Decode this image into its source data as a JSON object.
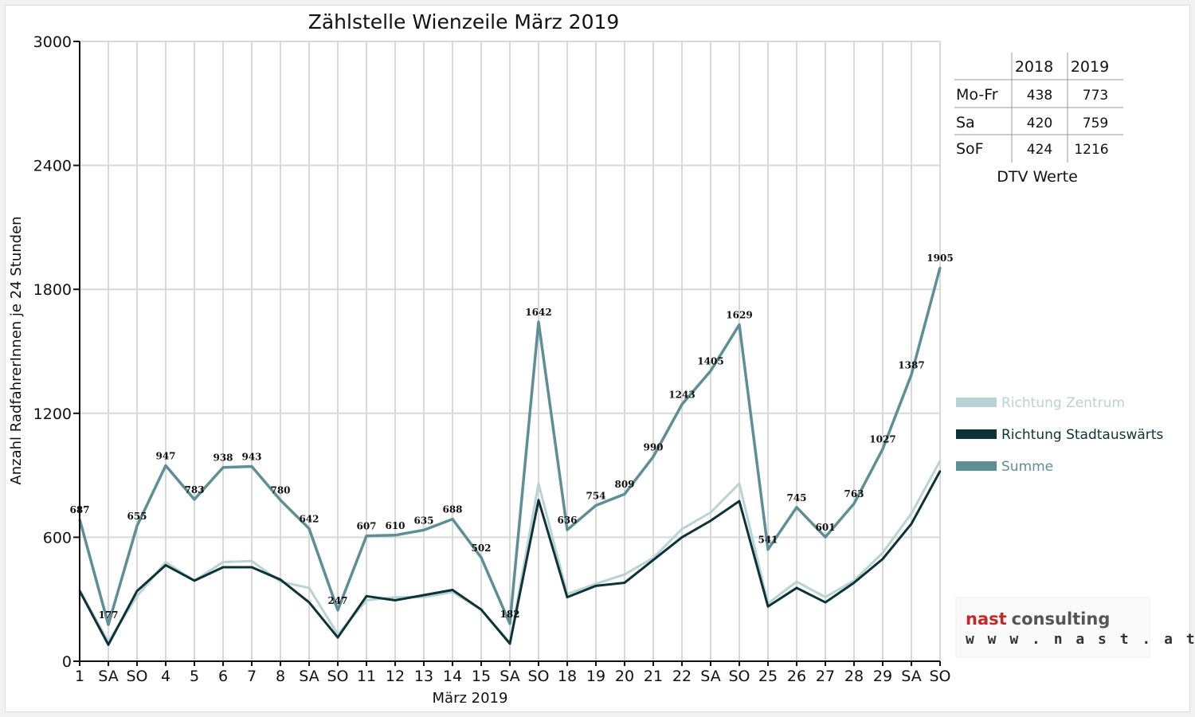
{
  "chart_data": {
    "type": "line",
    "title": "Zählstelle Wienzeile März 2019",
    "xlabel": "März 2019",
    "ylabel": "Anzahl RadfahrerInnen je 24 Stunden",
    "ylim": [
      0,
      3000
    ],
    "yticks": [
      0,
      600,
      1200,
      1800,
      2400,
      3000
    ],
    "grid": true,
    "legend_position": "right",
    "categories": [
      "1",
      "SA",
      "SO",
      "4",
      "5",
      "6",
      "7",
      "8",
      "SA",
      "SO",
      "11",
      "12",
      "13",
      "14",
      "15",
      "SA",
      "SO",
      "18",
      "19",
      "20",
      "21",
      "22",
      "SA",
      "SO",
      "25",
      "26",
      "27",
      "28",
      "29",
      "SA",
      "SO"
    ],
    "weekend_highlight": [
      "SO"
    ],
    "series": [
      {
        "name": "Richtung Zentrum",
        "color": "#b9d3d4",
        "values": [
          345,
          95,
          315,
          480,
          390,
          480,
          485,
          385,
          355,
          130,
          295,
          310,
          310,
          335,
          250,
          90,
          860,
          325,
          375,
          420,
          500,
          640,
          720,
          860,
          280,
          385,
          310,
          390,
          525,
          715,
          970
        ]
      },
      {
        "name": "Richtung Stadtauswärts",
        "color": "#0d3238",
        "values": [
          340,
          80,
          340,
          465,
          390,
          455,
          455,
          395,
          285,
          115,
          315,
          295,
          320,
          345,
          250,
          85,
          780,
          310,
          365,
          380,
          490,
          600,
          680,
          775,
          265,
          355,
          285,
          380,
          495,
          665,
          920
        ]
      },
      {
        "name": "Summe",
        "color": "#5e8e96",
        "values": [
          687,
          177,
          655,
          947,
          783,
          938,
          943,
          780,
          642,
          247,
          607,
          610,
          635,
          688,
          502,
          182,
          1642,
          636,
          754,
          809,
          990,
          1243,
          1405,
          1629,
          541,
          745,
          601,
          763,
          1027,
          1387,
          1905
        ]
      }
    ],
    "data_labels": [
      "687",
      "177",
      "655",
      "947",
      "783",
      "938",
      "943",
      "780",
      "642",
      "247",
      "607",
      "610",
      "635",
      "688",
      "502",
      "182",
      "1642",
      "636",
      "754",
      "809",
      "990",
      "1243",
      "1405",
      "1629",
      "541",
      "745",
      "601",
      "763",
      "1027",
      "1387",
      "1905"
    ]
  },
  "dtv_table": {
    "headers": [
      "2018",
      "2019"
    ],
    "rows": [
      {
        "label": "Mo-Fr",
        "v2018": "438",
        "v2019": "773"
      },
      {
        "label": "Sa",
        "v2018": "420",
        "v2019": "759"
      },
      {
        "label": "SoF",
        "v2018": "424",
        "v2019": "1216"
      }
    ],
    "caption": "DTV Werte"
  },
  "logo": {
    "name_part1": "nast",
    "name_part2": "consulting",
    "url": "w w w . n a s t . a t"
  },
  "colors": {
    "grid": "#d9d9d9",
    "axis": "#111111",
    "weekend_label": "#e00000"
  }
}
